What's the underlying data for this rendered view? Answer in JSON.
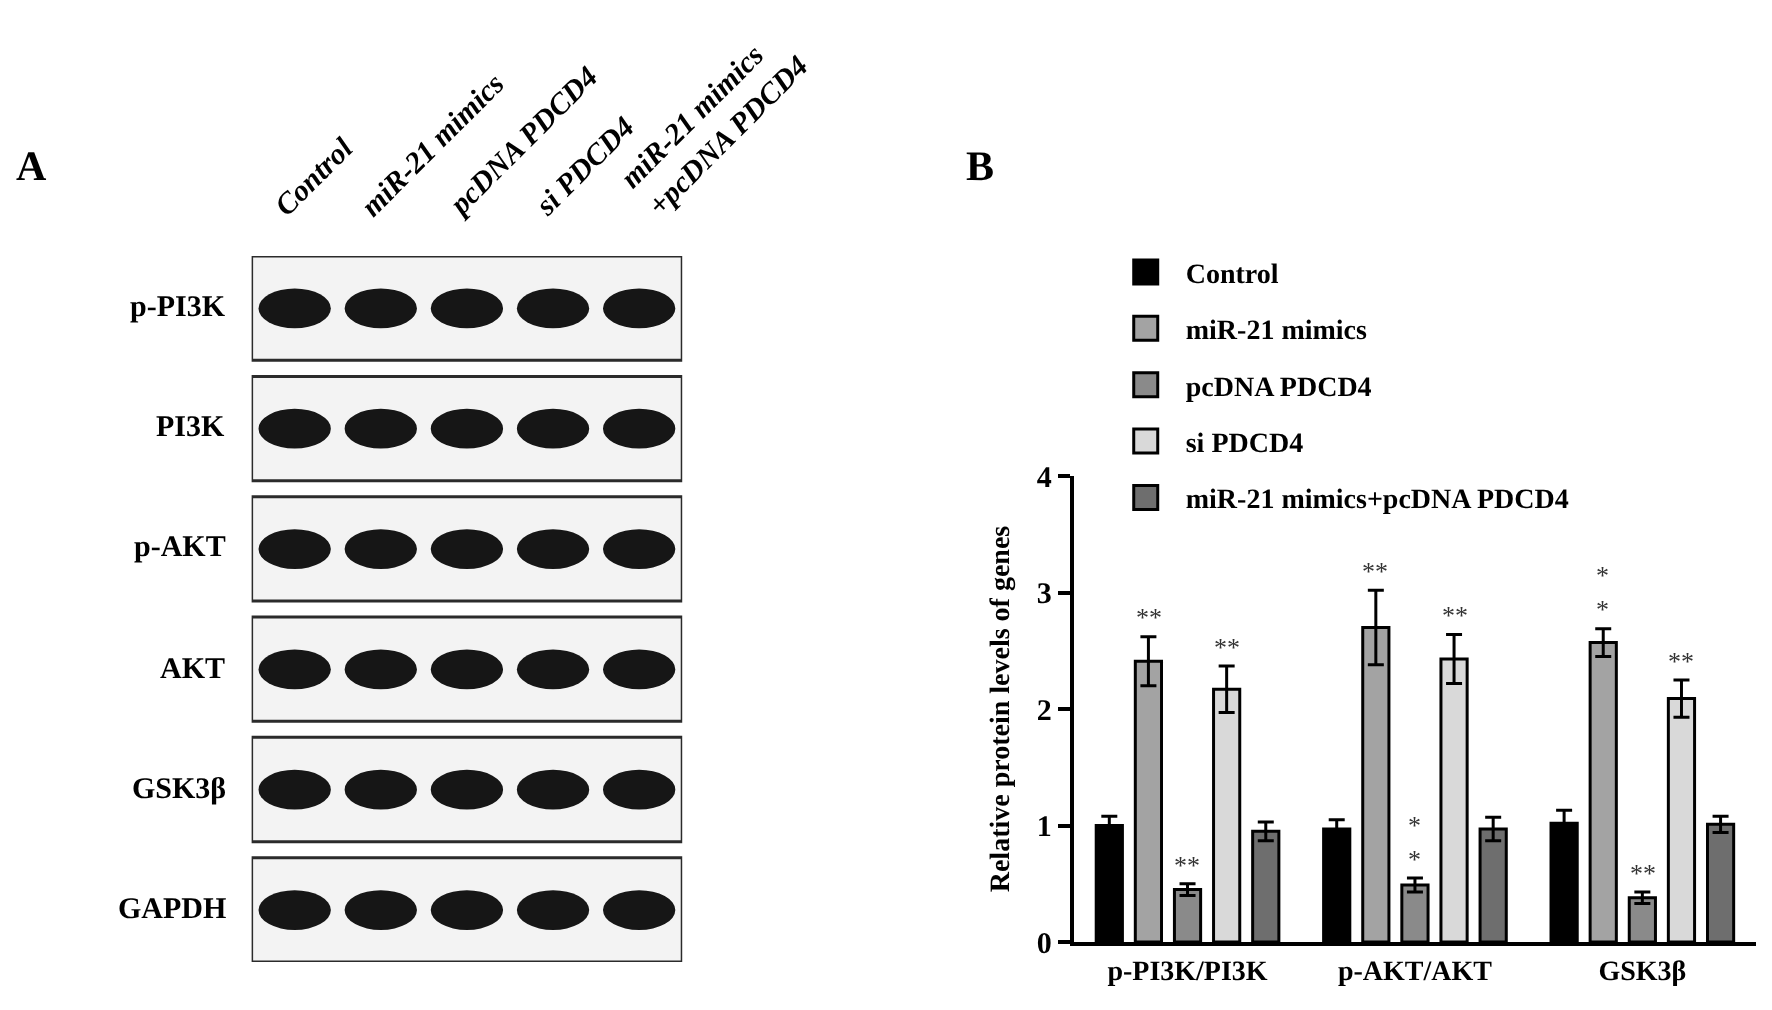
{
  "chart_data": [
    {
      "type": "other",
      "title": "A",
      "categories": [
        "Control",
        "miR-21 mimics",
        "pcDNA PDCD4",
        "si PDCD4",
        "miR-21 mimics\n+pcDNA PDCD4"
      ],
      "y_categories": [
        "p-PI3K",
        "PI3K",
        "p-AKT",
        "AKT",
        "GSK3β",
        "GAPDH"
      ]
    },
    {
      "type": "bar",
      "title": "B",
      "ylabel": "Relative protein levels of genes",
      "categories": [
        "p-PI3K/PI3K",
        "p-AKT/AKT",
        "GSK3β"
      ],
      "series": [
        {
          "name": "Control",
          "color": "#000000",
          "values": [
            1.0,
            0.97,
            1.02
          ],
          "errors": [
            0.08,
            0.08,
            0.11
          ]
        },
        {
          "name": "miR-21 mimics",
          "color": "#a3a3a3",
          "values": [
            2.41,
            2.7,
            2.57
          ],
          "errors": [
            0.21,
            0.32,
            0.12
          ],
          "value_labels": [
            "**",
            "**",
            "*\n*"
          ]
        },
        {
          "name": "pcDNA PDCD4",
          "color": "#8a8a8a",
          "values": [
            0.45,
            0.49,
            0.38
          ],
          "errors": [
            0.05,
            0.06,
            0.05
          ],
          "value_labels": [
            "**",
            "*\n*",
            "**"
          ]
        },
        {
          "name": "si PDCD4",
          "color": "#d9d9d9",
          "values": [
            2.17,
            2.43,
            2.09
          ],
          "errors": [
            0.2,
            0.21,
            0.16
          ],
          "value_labels": [
            "**",
            "**",
            "**"
          ]
        },
        {
          "name": "miR-21 mimics+pcDNA PDCD4",
          "color": "#6e6e6e",
          "values": [
            0.95,
            0.97,
            1.01
          ],
          "errors": [
            0.08,
            0.1,
            0.07
          ]
        }
      ],
      "ylim": [
        0,
        4
      ],
      "yticks": [
        0,
        1,
        2,
        3,
        4
      ],
      "legend": "top left"
    }
  ]
}
